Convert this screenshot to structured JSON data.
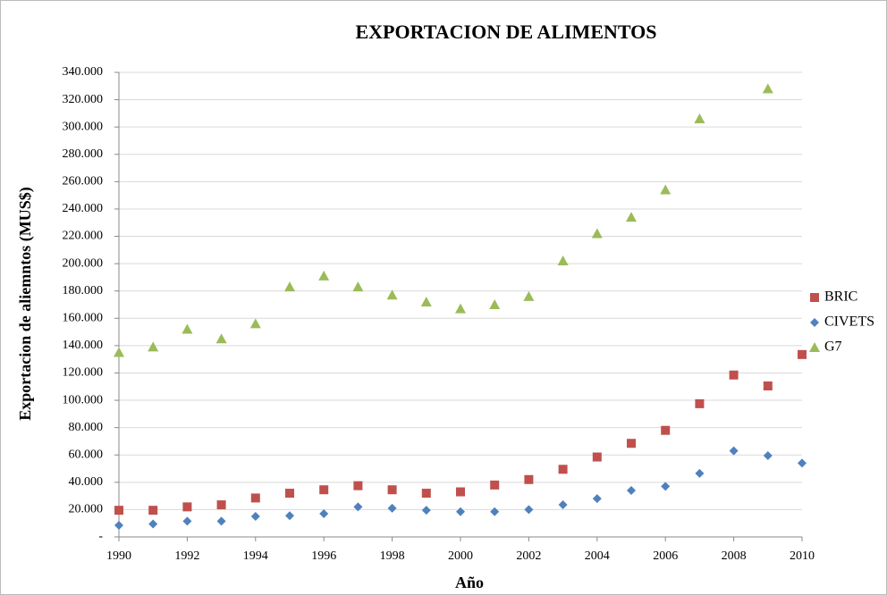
{
  "chart_data": {
    "type": "scatter",
    "title": "EXPORTACION DE ALIMENTOS",
    "x_label": "Año",
    "y_label": "Exportacion de aliemntos (MUS$)",
    "x": [
      1990,
      1991,
      1992,
      1993,
      1994,
      1995,
      1996,
      1997,
      1998,
      1999,
      2000,
      2001,
      2002,
      2003,
      2004,
      2005,
      2006,
      2007,
      2008,
      2009,
      2010
    ],
    "series": [
      {
        "name": "BRIC",
        "color": "#c0504d",
        "marker": "square",
        "values": [
          19500,
          19500,
          22000,
          23500,
          28500,
          32000,
          34500,
          37500,
          34500,
          32000,
          33000,
          38000,
          42000,
          49500,
          58500,
          68500,
          78000,
          97500,
          118500,
          110500,
          133500
        ]
      },
      {
        "name": "CIVETS",
        "color": "#4f81bd",
        "marker": "diamond",
        "values": [
          8500,
          9500,
          11500,
          11500,
          15000,
          15500,
          17000,
          22000,
          21000,
          19500,
          18500,
          18500,
          20000,
          23500,
          28000,
          34000,
          37000,
          46500,
          63000,
          59500,
          54000
        ]
      },
      {
        "name": "G7",
        "color": "#9bbb59",
        "marker": "triangle",
        "values": [
          135000,
          139000,
          152000,
          145000,
          156000,
          183000,
          191000,
          183000,
          177000,
          172000,
          167000,
          170000,
          176000,
          202000,
          222000,
          234000,
          254000,
          306000,
          null,
          328000,
          null
        ]
      }
    ],
    "xlim": [
      1990,
      2010
    ],
    "xticks": [
      1990,
      1992,
      1994,
      1996,
      1998,
      2000,
      2002,
      2004,
      2006,
      2008,
      2010
    ],
    "ylim": [
      0,
      340000
    ],
    "yticks": [
      {
        "value": 0,
        "label": "-"
      },
      {
        "value": 20000,
        "label": "20.000"
      },
      {
        "value": 40000,
        "label": "40.000"
      },
      {
        "value": 60000,
        "label": "60.000"
      },
      {
        "value": 80000,
        "label": "80.000"
      },
      {
        "value": 100000,
        "label": "100.000"
      },
      {
        "value": 120000,
        "label": "120.000"
      },
      {
        "value": 140000,
        "label": "140.000"
      },
      {
        "value": 160000,
        "label": "160.000"
      },
      {
        "value": 180000,
        "label": "180.000"
      },
      {
        "value": 200000,
        "label": "200.000"
      },
      {
        "value": 220000,
        "label": "220.000"
      },
      {
        "value": 240000,
        "label": "240.000"
      },
      {
        "value": 260000,
        "label": "260.000"
      },
      {
        "value": 280000,
        "label": "280.000"
      },
      {
        "value": 300000,
        "label": "300.000"
      },
      {
        "value": 320000,
        "label": "320.000"
      },
      {
        "value": 340000,
        "label": "340.000"
      }
    ],
    "grid": true,
    "legend": "right"
  }
}
